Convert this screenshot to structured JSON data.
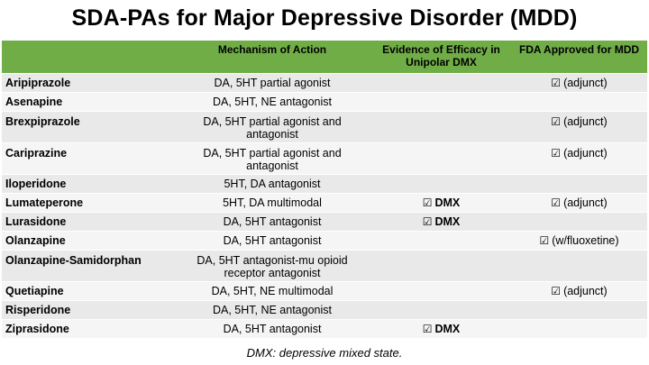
{
  "title": "SDA-PAs for Major Depressive Disorder (MDD)",
  "colors": {
    "header_bg": "#70ad47",
    "row_odd": "#e9e9e9",
    "row_even": "#f5f5f5"
  },
  "check_icon": "ballot-box-with-check",
  "check_glyph": "☑",
  "headers": {
    "drug": "",
    "mechanism": "Mechanism of Action",
    "efficacy": "Evidence of Efficacy in Unipolar DMX",
    "fda": "FDA Approved for MDD"
  },
  "rows": [
    {
      "drug": "Aripiprazole",
      "mechanism": "DA, 5HT partial agonist",
      "efficacy": "",
      "fda": "(adjunct)"
    },
    {
      "drug": "Asenapine",
      "mechanism": "DA, 5HT, NE antagonist",
      "efficacy": "",
      "fda": ""
    },
    {
      "drug": "Brexpiprazole",
      "mechanism": "DA, 5HT partial agonist and antagonist",
      "efficacy": "",
      "fda": "(adjunct)"
    },
    {
      "drug": "Cariprazine",
      "mechanism": "DA, 5HT partial agonist and antagonist",
      "efficacy": "",
      "fda": "(adjunct)"
    },
    {
      "drug": "Iloperidone",
      "mechanism": "5HT, DA antagonist",
      "efficacy": "",
      "fda": ""
    },
    {
      "drug": "Lumateperone",
      "mechanism": "5HT, DA multimodal",
      "efficacy": "DMX",
      "fda": "(adjunct)"
    },
    {
      "drug": "Lurasidone",
      "mechanism": "DA, 5HT antagonist",
      "efficacy": "DMX",
      "fda": ""
    },
    {
      "drug": "Olanzapine",
      "mechanism": "DA, 5HT antagonist",
      "efficacy": "",
      "fda": "(w/fluoxetine)"
    },
    {
      "drug": "Olanzapine-Samidorphan",
      "mechanism": "DA, 5HT antagonist-mu opioid receptor antagonist",
      "efficacy": "",
      "fda": ""
    },
    {
      "drug": "Quetiapine",
      "mechanism": "DA, 5HT, NE multimodal",
      "efficacy": "",
      "fda": "(adjunct)"
    },
    {
      "drug": "Risperidone",
      "mechanism": "DA, 5HT, NE antagonist",
      "efficacy": "",
      "fda": ""
    },
    {
      "drug": "Ziprasidone",
      "mechanism": "DA, 5HT antagonist",
      "efficacy": "DMX",
      "fda": ""
    }
  ],
  "footnote": "DMX: depressive mixed state."
}
